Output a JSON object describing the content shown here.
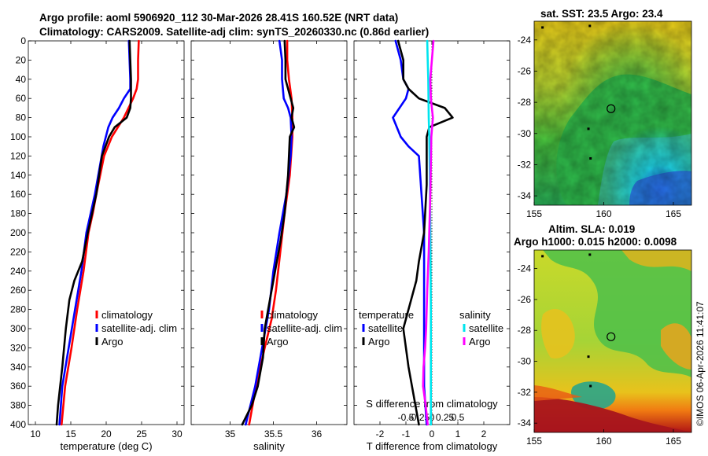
{
  "titles": {
    "line1": "Argo profile: aoml 5906920_112 30-Mar-2026 28.41S 160.52E (NRT data)",
    "line2": "Climatology: CARS2009. Satellite-adj clim: synTS_20260330.nc (0.86d earlier)",
    "sst": "sat. SST: 23.5 Argo: 23.4",
    "sla1": "Altim. SLA: 0.019",
    "sla2": "Argo h1000: 0.015 h2000: 0.0098"
  },
  "credit": "©IMOS 06-Apr-2026 11:41:07",
  "colors": {
    "climatology": "#ff0000",
    "satellite": "#0000ff",
    "argo": "#000000",
    "sal_satellite": "#00e5ee",
    "sal_argo": "#ff00ff"
  },
  "chart_data": [
    {
      "type": "line",
      "id": "temperature",
      "xlabel": "temperature (deg C)",
      "xlim": [
        9,
        31
      ],
      "ylim": [
        400,
        0
      ],
      "xticks": [
        10,
        15,
        20,
        25,
        30
      ],
      "yticks": [
        0,
        20,
        40,
        60,
        80,
        100,
        120,
        140,
        160,
        180,
        200,
        220,
        240,
        260,
        280,
        300,
        320,
        340,
        360,
        380,
        400
      ],
      "legend": [
        "climatology",
        "satellite-adj. clim",
        "Argo"
      ],
      "series": [
        {
          "name": "climatology",
          "color": "#ff0000",
          "x": [
            24.6,
            24.5,
            24.5,
            24.3,
            23.8,
            22.5,
            20.8,
            19.7,
            18.6,
            18.1,
            17.5,
            16.8,
            15.9,
            15.1,
            14.2,
            13.7
          ],
          "y": [
            0,
            20,
            40,
            50,
            60,
            80,
            100,
            120,
            160,
            180,
            200,
            240,
            280,
            320,
            360,
            400
          ]
        },
        {
          "name": "satellite-adj. clim",
          "color": "#0000ff",
          "x": [
            23.2,
            23.3,
            23.4,
            23.4,
            22.5,
            21.8,
            20.9,
            20.3,
            19.6,
            18.4,
            17.8,
            17.2,
            16.5,
            15.6,
            14.7,
            13.8,
            13.4
          ],
          "y": [
            0,
            20,
            40,
            50,
            60,
            70,
            80,
            90,
            110,
            160,
            180,
            200,
            240,
            280,
            320,
            360,
            400
          ]
        },
        {
          "name": "Argo",
          "color": "#000000",
          "x": [
            23.3,
            23.4,
            23.5,
            23.5,
            23.4,
            22.9,
            21.2,
            20.4,
            19.4,
            18.6,
            18.0,
            17.4,
            16.6,
            15.5,
            14.8,
            14.3,
            13.8,
            13.2,
            13.0
          ],
          "y": [
            0,
            20,
            40,
            60,
            70,
            80,
            90,
            100,
            120,
            160,
            180,
            200,
            230,
            250,
            270,
            300,
            340,
            380,
            400
          ]
        }
      ]
    },
    {
      "type": "line",
      "id": "salinity",
      "xlabel": "salinity",
      "xlim": [
        34.55,
        36.35
      ],
      "ylim": [
        400,
        0
      ],
      "xticks": [
        35,
        35.5,
        36
      ],
      "legend": [
        "climatology",
        "satellite-adj. clim",
        "Argo"
      ],
      "series": [
        {
          "name": "climatology",
          "color": "#ff0000",
          "x": [
            35.66,
            35.66,
            35.68,
            35.71,
            35.72,
            35.72,
            35.69,
            35.63,
            35.58,
            35.53,
            35.48,
            35.4,
            35.3,
            35.22
          ],
          "y": [
            0,
            20,
            40,
            60,
            80,
            100,
            140,
            180,
            220,
            260,
            290,
            320,
            360,
            400
          ]
        },
        {
          "name": "satellite-adj. clim",
          "color": "#0000ff",
          "x": [
            35.57,
            35.6,
            35.6,
            35.62,
            35.67,
            35.7,
            35.71,
            35.7,
            35.65,
            35.57,
            35.5,
            35.45,
            35.37,
            35.29,
            35.18
          ],
          "y": [
            0,
            20,
            40,
            60,
            70,
            80,
            100,
            120,
            160,
            200,
            240,
            280,
            320,
            360,
            400
          ]
        },
        {
          "name": "Argo",
          "color": "#000000",
          "x": [
            35.63,
            35.64,
            35.64,
            35.7,
            35.73,
            35.71,
            35.74,
            35.69,
            35.67,
            35.63,
            35.58,
            35.52,
            35.46,
            35.4,
            35.38,
            35.32,
            35.25,
            35.14
          ],
          "y": [
            0,
            20,
            40,
            60,
            70,
            80,
            90,
            100,
            140,
            180,
            210,
            240,
            270,
            300,
            330,
            360,
            380,
            400
          ]
        }
      ]
    },
    {
      "type": "line",
      "id": "differences",
      "xlabel": "T difference from climatology",
      "xlabel_top": "S difference from climatology",
      "xlim": [
        -3,
        3
      ],
      "ylim": [
        400,
        0
      ],
      "xticks": [
        -2,
        -1,
        0,
        1,
        2
      ],
      "top_xticks": [
        -0.5,
        -0.25,
        0,
        0.25,
        0.5
      ],
      "top_xlim": [
        -1.5,
        1.5
      ],
      "legend_temperature": {
        "title": "temperature",
        "entries": [
          "satellite",
          "Argo"
        ]
      },
      "legend_salinity": {
        "title": "salinity",
        "entries": [
          "satellite",
          "Argo"
        ]
      },
      "series": [
        {
          "name": "T satellite",
          "color": "#0000ff",
          "axis": "T",
          "x": [
            -1.4,
            -1.2,
            -1.1,
            -0.9,
            -1.0,
            -1.5,
            -1.2,
            -0.9,
            -0.5,
            -0.4,
            -0.3,
            -0.3,
            -0.3,
            -0.3,
            -0.2
          ],
          "y": [
            0,
            20,
            40,
            50,
            60,
            80,
            100,
            110,
            120,
            160,
            200,
            260,
            320,
            360,
            400
          ]
        },
        {
          "name": "T Argo",
          "color": "#000000",
          "axis": "T",
          "x": [
            -1.3,
            -1.1,
            -1.1,
            -0.9,
            -0.5,
            0.5,
            0.8,
            -0.1,
            -0.2,
            -0.2,
            -0.3,
            -0.5,
            -0.6,
            -0.8,
            -1.1,
            -0.9,
            -0.7,
            -0.5
          ],
          "y": [
            0,
            20,
            40,
            50,
            60,
            70,
            80,
            90,
            100,
            150,
            200,
            230,
            250,
            270,
            300,
            340,
            370,
            400
          ]
        },
        {
          "name": "S satellite",
          "color": "#00e5ee",
          "axis": "S",
          "x": [
            -0.09,
            -0.08,
            -0.07,
            -0.06,
            -0.05,
            -0.04,
            -0.03,
            -0.02,
            -0.02,
            -0.02
          ],
          "y": [
            0,
            20,
            40,
            80,
            100,
            140,
            200,
            280,
            340,
            400
          ]
        },
        {
          "name": "S Argo",
          "color": "#ff00ff",
          "axis": "S",
          "x": [
            0.03,
            0.0,
            -0.03,
            -0.02,
            0.02,
            -0.01,
            -0.03,
            -0.06,
            -0.09,
            -0.11,
            -0.13,
            -0.16,
            -0.17,
            -0.12,
            -0.08
          ],
          "y": [
            0,
            20,
            40,
            60,
            80,
            100,
            160,
            220,
            260,
            300,
            320,
            340,
            360,
            380,
            400
          ]
        }
      ]
    },
    {
      "type": "heatmap",
      "id": "sst_map",
      "title": "sat. SST: 23.5 Argo: 23.4",
      "xlim": [
        155,
        166.3
      ],
      "ylim": [
        -34.6,
        -22.8
      ],
      "xticks": [
        155,
        160,
        165
      ],
      "yticks": [
        -24,
        -26,
        -28,
        -30,
        -32,
        -34
      ],
      "marker": {
        "lon": 160.52,
        "lat": -28.41
      }
    },
    {
      "type": "heatmap",
      "id": "sla_map",
      "title": "Altim. SLA: 0.019",
      "xlim": [
        155,
        166.3
      ],
      "ylim": [
        -34.6,
        -22.8
      ],
      "xticks": [
        155,
        160,
        165
      ],
      "yticks": [
        -24,
        -26,
        -28,
        -30,
        -32,
        -34
      ],
      "marker": {
        "lon": 160.52,
        "lat": -28.41
      }
    }
  ]
}
